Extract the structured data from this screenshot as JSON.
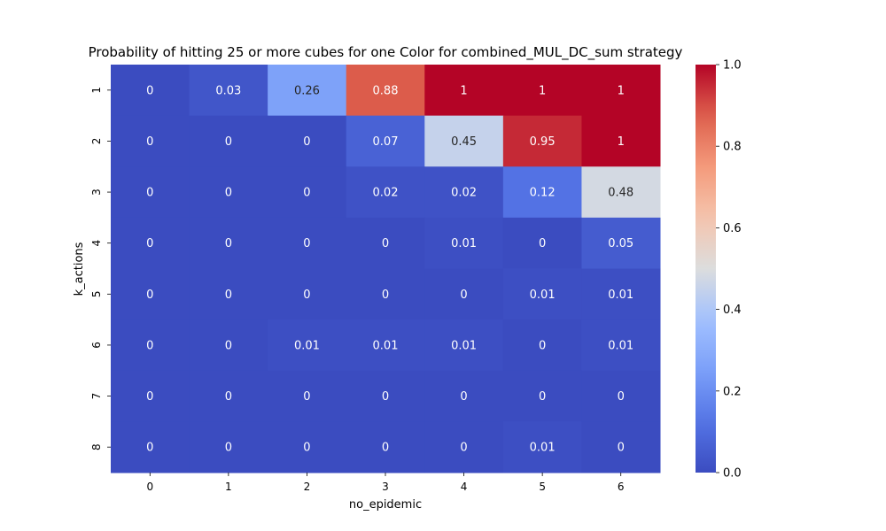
{
  "chart_data": {
    "type": "heatmap",
    "title": "Probability of hitting 25 or more cubes for one Color for combined_MUL_DC_sum strategy",
    "xlabel": "no_epidemic",
    "ylabel": "k_actions",
    "x_categories": [
      "0",
      "1",
      "2",
      "3",
      "4",
      "5",
      "6"
    ],
    "y_categories": [
      "1",
      "2",
      "3",
      "4",
      "5",
      "6",
      "7",
      "8"
    ],
    "values": [
      [
        0,
        0.03,
        0.26,
        0.88,
        1,
        1,
        1
      ],
      [
        0,
        0,
        0,
        0.07,
        0.45,
        0.95,
        1
      ],
      [
        0,
        0,
        0,
        0.02,
        0.02,
        0.12,
        0.48
      ],
      [
        0,
        0,
        0,
        0,
        0.01,
        0,
        0.05
      ],
      [
        0,
        0,
        0,
        0,
        0,
        0.01,
        0.01
      ],
      [
        0,
        0,
        0.01,
        0.01,
        0.01,
        0,
        0.01
      ],
      [
        0,
        0,
        0,
        0,
        0,
        0,
        0
      ],
      [
        0,
        0,
        0,
        0,
        0,
        0.01,
        0
      ]
    ],
    "value_range": [
      0,
      1
    ],
    "colormap": "coolwarm",
    "colorbar_ticks": [
      "0.0",
      "0.2",
      "0.4",
      "0.6",
      "0.8",
      "1.0"
    ],
    "grid": false
  }
}
